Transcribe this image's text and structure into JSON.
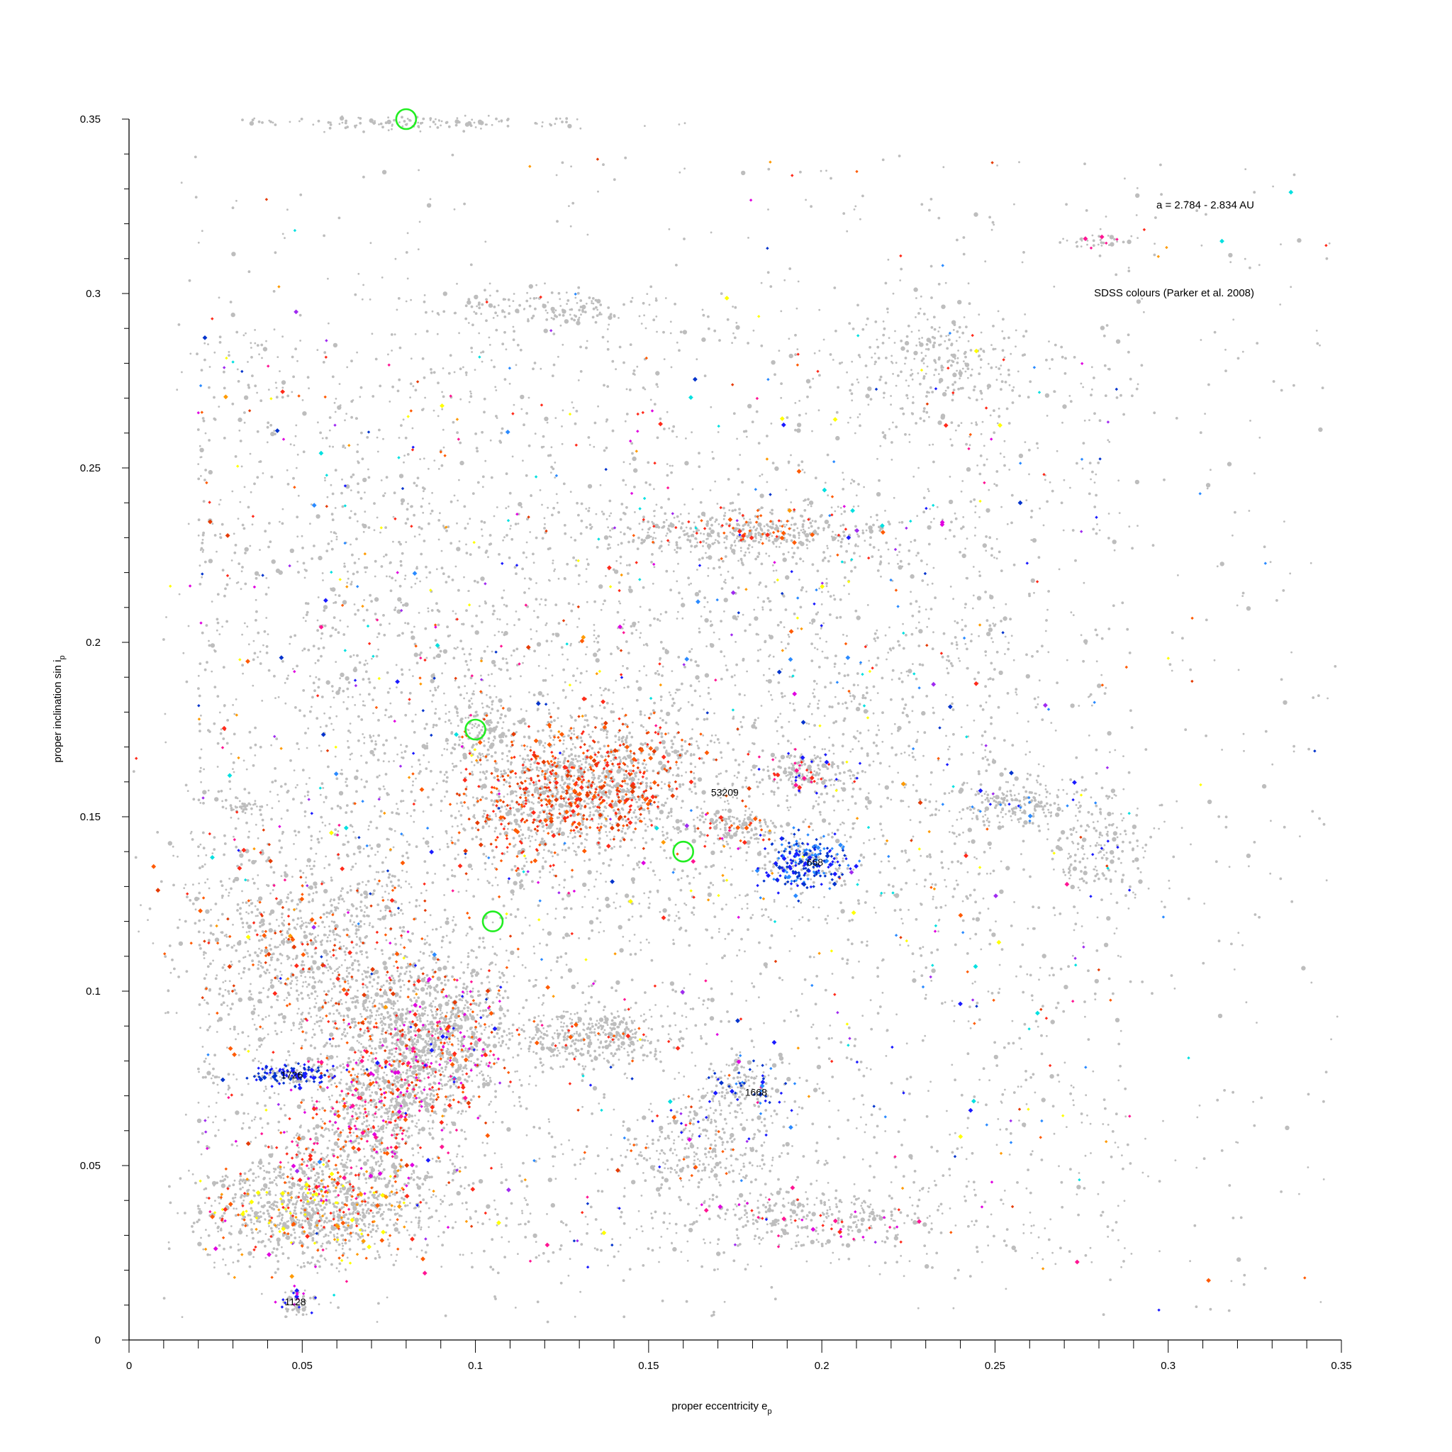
{
  "chart_data": {
    "type": "scatter",
    "title": "",
    "xlabel": "proper eccentricity e",
    "xlabel_sub": "p",
    "ylabel": "proper inclination sin i",
    "ylabel_sub": "p",
    "xlim": [
      0,
      0.35
    ],
    "ylim": [
      0,
      0.35
    ],
    "xticks": [
      "0",
      "0.05",
      "0.1",
      "0.15",
      "0.2",
      "0.25",
      "0.3",
      "0.35"
    ],
    "yticks": [
      "0",
      "0.05",
      "0.1",
      "0.15",
      "0.2",
      "0.25",
      "0.3",
      "0.35"
    ],
    "grid": false,
    "notes": {
      "range": "a = 2.784 - 2.834 AU",
      "colours": "SDSS colours (Parker et al. 2008)"
    },
    "colors": {
      "background_points": "#bdbdbd",
      "sdss": [
        "#ff2a1a",
        "#ff5a00",
        "#e53a00",
        "#ff9a00",
        "#ff1493",
        "#e000e0",
        "#a02af0",
        "#1a1aff",
        "#0033cc",
        "#2a8aff",
        "#ffff00",
        "#00e0e0"
      ],
      "highlight_circle": "#22ee22"
    },
    "family_labels": [
      {
        "text": "53209",
        "x": 0.172,
        "y": 0.157
      },
      {
        "text": "1668",
        "x": 0.181,
        "y": 0.071
      },
      {
        "text": "1726",
        "x": 0.047,
        "y": 0.076
      },
      {
        "text": "1128",
        "x": 0.048,
        "y": 0.011
      },
      {
        "text": "668",
        "x": 0.198,
        "y": 0.137
      }
    ],
    "highlight_circles": [
      {
        "x": 0.08,
        "y": 0.35
      },
      {
        "x": 0.1,
        "y": 0.175
      },
      {
        "x": 0.16,
        "y": 0.14
      },
      {
        "x": 0.105,
        "y": 0.12
      }
    ],
    "clusters": [
      {
        "x": 0.06,
        "y": 0.105,
        "sx": 0.026,
        "sy": 0.014,
        "n": 1300,
        "rot": -0.55,
        "tint": 0.16,
        "cols": [
          "#ff2a1a",
          "#ff5a00",
          "#e53a00"
        ]
      },
      {
        "x": 0.073,
        "y": 0.068,
        "sx": 0.02,
        "sy": 0.01,
        "n": 1200,
        "rot": 0.8,
        "tint": 0.28,
        "cols": [
          "#ff2a1a",
          "#ff1493",
          "#ff5a00",
          "#e000e0"
        ]
      },
      {
        "x": 0.09,
        "y": 0.086,
        "sx": 0.012,
        "sy": 0.008,
        "n": 500,
        "rot": 0.7,
        "tint": 0.12,
        "cols": [
          "#ff5a00",
          "#1a1aff",
          "#e000e0"
        ]
      },
      {
        "x": 0.13,
        "y": 0.158,
        "sx": 0.016,
        "sy": 0.009,
        "n": 1400,
        "rot": 0.2,
        "tint": 0.34,
        "cols": [
          "#ff2a1a",
          "#ff5a00",
          "#e53a00"
        ]
      },
      {
        "x": 0.055,
        "y": 0.038,
        "sx": 0.016,
        "sy": 0.007,
        "n": 900,
        "rot": 0,
        "tint": 0.2,
        "cols": [
          "#ff5a00",
          "#ff2a1a",
          "#ff9a00",
          "#ffff00"
        ]
      },
      {
        "x": 0.047,
        "y": 0.076,
        "sx": 0.006,
        "sy": 0.0015,
        "n": 160,
        "rot": 0,
        "tint": 0.65,
        "cols": [
          "#1a1aff",
          "#0033cc"
        ]
      },
      {
        "x": 0.196,
        "y": 0.137,
        "sx": 0.006,
        "sy": 0.004,
        "n": 260,
        "rot": 0,
        "tint": 0.75,
        "cols": [
          "#1a1aff",
          "#0033cc",
          "#2a8aff"
        ]
      },
      {
        "x": 0.177,
        "y": 0.073,
        "sx": 0.006,
        "sy": 0.005,
        "n": 160,
        "rot": 0,
        "tint": 0.3,
        "cols": [
          "#1a1aff",
          "#2a8aff",
          "#0033cc"
        ]
      },
      {
        "x": 0.178,
        "y": 0.231,
        "sx": 0.016,
        "sy": 0.003,
        "n": 400,
        "rot": 0,
        "tint": 0.12,
        "cols": [
          "#ff2a1a",
          "#ff5a00"
        ]
      },
      {
        "x": 0.134,
        "y": 0.087,
        "sx": 0.011,
        "sy": 0.004,
        "n": 380,
        "rot": 0,
        "tint": 0.06,
        "cols": [
          "#ff5a00",
          "#ff2a1a"
        ]
      },
      {
        "x": 0.195,
        "y": 0.163,
        "sx": 0.007,
        "sy": 0.003,
        "n": 180,
        "rot": 0,
        "tint": 0.18,
        "cols": [
          "#1a1aff",
          "#ff1493",
          "#ff2a1a"
        ]
      },
      {
        "x": 0.258,
        "y": 0.154,
        "sx": 0.009,
        "sy": 0.003,
        "n": 200,
        "rot": 0,
        "tint": 0.1,
        "cols": [
          "#1a1aff",
          "#2a8aff"
        ]
      },
      {
        "x": 0.048,
        "y": 0.011,
        "sx": 0.003,
        "sy": 0.002,
        "n": 70,
        "rot": 0,
        "tint": 0.3,
        "cols": [
          "#1a1aff",
          "#e000e0"
        ]
      },
      {
        "x": 0.12,
        "y": 0.296,
        "sx": 0.02,
        "sy": 0.003,
        "n": 180,
        "rot": 0,
        "tint": 0.07,
        "cols": [
          "#ff2a1a"
        ]
      },
      {
        "x": 0.085,
        "y": 0.349,
        "sx": 0.025,
        "sy": 0.001,
        "n": 140,
        "rot": 0,
        "tint": 0.0,
        "cols": []
      },
      {
        "x": 0.165,
        "y": 0.055,
        "sx": 0.012,
        "sy": 0.008,
        "n": 300,
        "rot": 0,
        "tint": 0.1,
        "cols": [
          "#1a1aff",
          "#ff5a00"
        ]
      },
      {
        "x": 0.2,
        "y": 0.035,
        "sx": 0.02,
        "sy": 0.004,
        "n": 300,
        "rot": 0,
        "tint": 0.08,
        "cols": [
          "#ff1493",
          "#ff2a1a",
          "#e000e0"
        ]
      },
      {
        "x": 0.28,
        "y": 0.14,
        "sx": 0.008,
        "sy": 0.008,
        "n": 160,
        "rot": 0,
        "tint": 0.04,
        "cols": [
          "#1a1aff"
        ]
      },
      {
        "x": 0.235,
        "y": 0.28,
        "sx": 0.013,
        "sy": 0.01,
        "n": 260,
        "rot": 0,
        "tint": 0.05,
        "cols": [
          "#ff2a1a",
          "#1a1aff"
        ]
      },
      {
        "x": 0.175,
        "y": 0.147,
        "sx": 0.006,
        "sy": 0.003,
        "n": 130,
        "rot": 0,
        "tint": 0.12,
        "cols": [
          "#ff5a00",
          "#ff2a1a"
        ]
      },
      {
        "x": 0.033,
        "y": 0.153,
        "sx": 0.003,
        "sy": 0.0012,
        "n": 40,
        "rot": 0,
        "tint": 0.0,
        "cols": []
      },
      {
        "x": 0.28,
        "y": 0.315,
        "sx": 0.005,
        "sy": 0.0008,
        "n": 40,
        "rot": 0,
        "tint": 0.1,
        "cols": [
          "#ff1493"
        ]
      },
      {
        "x": 0.1,
        "y": 0.175,
        "sx": 0.006,
        "sy": 0.006,
        "n": 160,
        "rot": 0,
        "tint": 0.04,
        "cols": [
          "#ff5a00"
        ]
      }
    ],
    "background": {
      "n": 6500,
      "tint": 0.11
    }
  }
}
